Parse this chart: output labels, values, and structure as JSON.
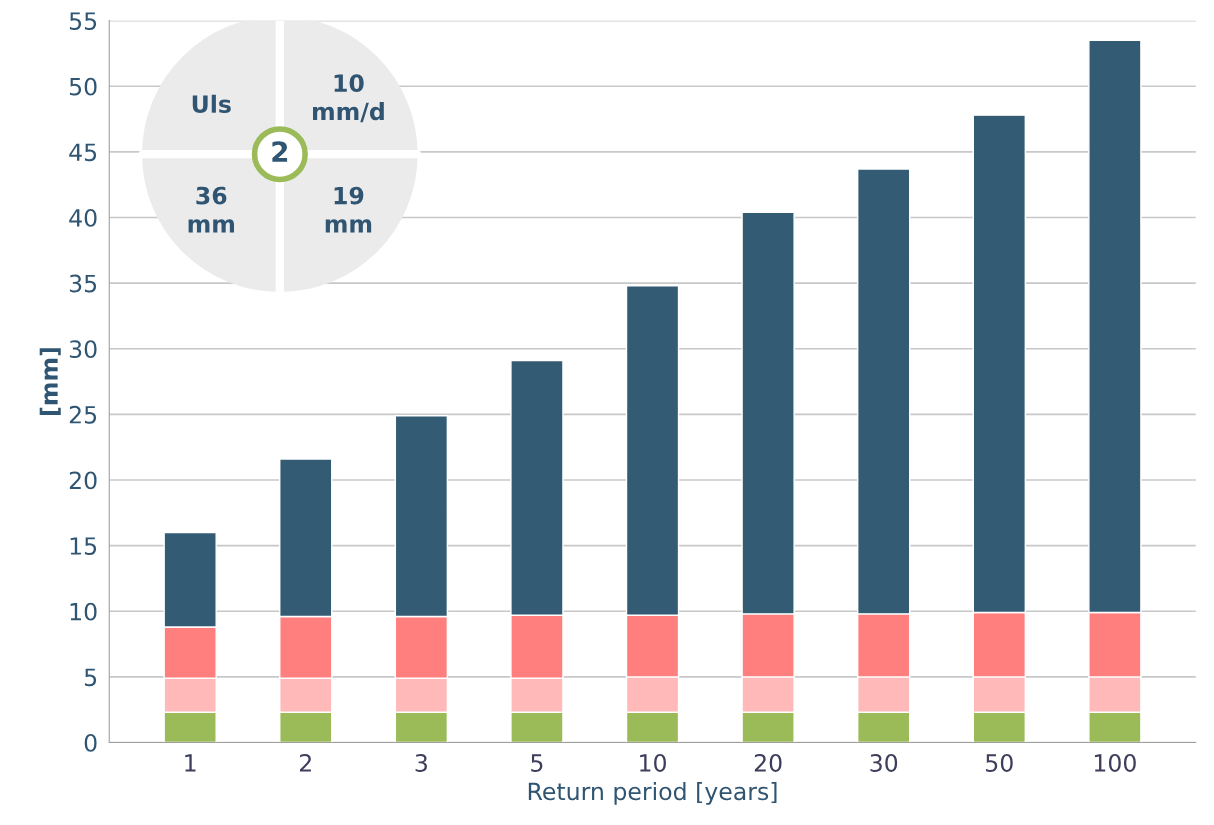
{
  "chart_data": {
    "type": "bar",
    "stacked": true,
    "xlabel": "Return period [years]",
    "ylabel": "[mm]",
    "categories": [
      "1",
      "2",
      "3",
      "5",
      "10",
      "20",
      "30",
      "50",
      "100"
    ],
    "series": [
      {
        "color": "#9bbb59",
        "values": [
          2.3,
          2.3,
          2.3,
          2.3,
          2.3,
          2.3,
          2.3,
          2.3,
          2.3
        ]
      },
      {
        "color": "#ffb9b9",
        "values": [
          2.6,
          2.6,
          2.6,
          2.6,
          2.7,
          2.7,
          2.7,
          2.7,
          2.7
        ]
      },
      {
        "color": "#ff7f7f",
        "values": [
          3.9,
          4.7,
          4.7,
          4.8,
          4.7,
          4.8,
          4.8,
          4.9,
          4.9
        ]
      },
      {
        "color": "#335b74",
        "values": [
          7.2,
          12.0,
          15.3,
          19.4,
          25.1,
          30.6,
          33.9,
          37.9,
          43.6
        ]
      }
    ],
    "ylim": [
      0,
      55
    ],
    "yticks": [
      0,
      5,
      10,
      15,
      20,
      25,
      30,
      35,
      40,
      45,
      50,
      55
    ],
    "grid": "y",
    "annotations": [
      "Uls",
      "10\nmm/d",
      "36\nmm",
      "19\nmm",
      "2"
    ]
  }
}
